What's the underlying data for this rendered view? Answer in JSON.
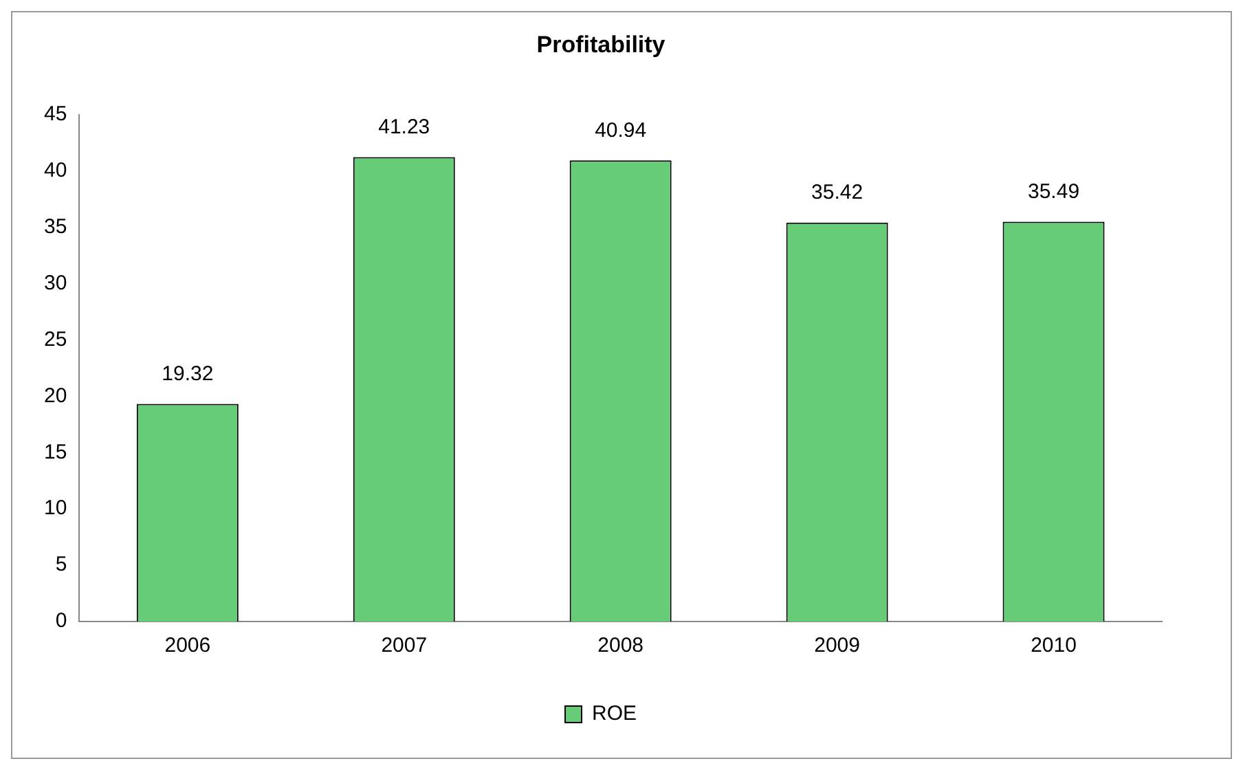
{
  "chart_data": {
    "type": "bar",
    "title": "Profitability",
    "categories": [
      "2006",
      "2007",
      "2008",
      "2009",
      "2010"
    ],
    "series": [
      {
        "name": "ROE",
        "color": "#66cc77",
        "values": [
          19.32,
          41.23,
          40.94,
          35.42,
          35.49
        ]
      }
    ],
    "ylim": [
      0,
      45
    ],
    "yticks": [
      0,
      5,
      10,
      15,
      20,
      25,
      30,
      35,
      40,
      45
    ],
    "grid": false,
    "legend": "bottom",
    "data_labels": true
  }
}
